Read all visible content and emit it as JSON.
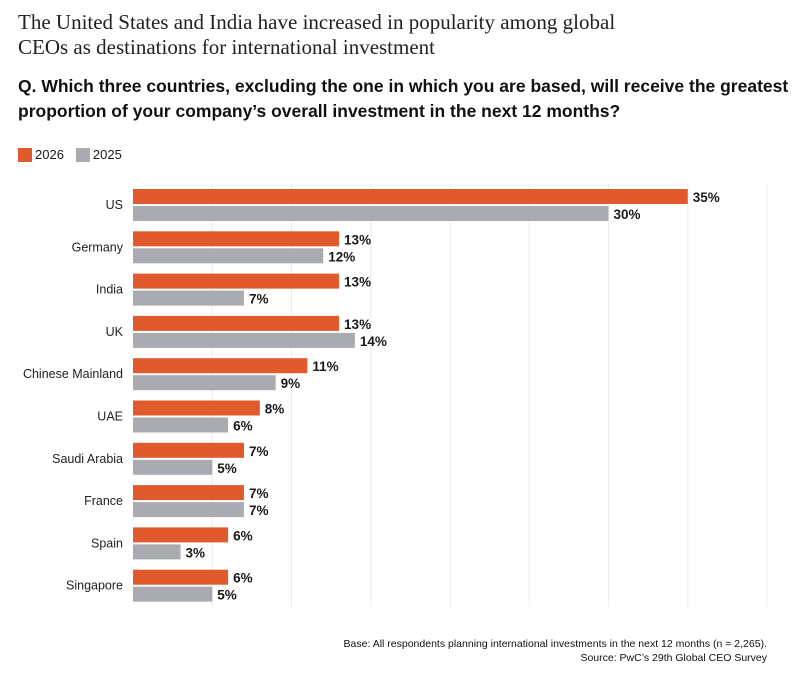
{
  "title": "The United States and India have increased in popularity among global CEOs as destinations for international investment",
  "question": "Q. Which three countries, excluding the one in which you are based, will receive the greatest proportion of your company’s overall investment in the next 12 months?",
  "footer": {
    "base": "Base: All respondents planning international investments in the next 12 months (n = 2,265).",
    "source": "Source: PwC’s 29th Global CEO Survey"
  },
  "chart_data": {
    "type": "bar",
    "orientation": "horizontal",
    "categories": [
      "US",
      "Germany",
      "India",
      "UK",
      "Chinese Mainland",
      "UAE",
      "Saudi Arabia",
      "France",
      "Spain",
      "Singapore"
    ],
    "series": [
      {
        "name": "2026",
        "color": "#e05a2b",
        "values": [
          35,
          13,
          13,
          13,
          11,
          8,
          7,
          7,
          6,
          6
        ]
      },
      {
        "name": "2025",
        "color": "#a9abb1",
        "values": [
          30,
          12,
          7,
          14,
          9,
          6,
          5,
          7,
          3,
          5
        ]
      }
    ],
    "value_suffix": "%",
    "xlim": [
      0,
      40
    ],
    "grid": true,
    "legend": "top-left"
  }
}
